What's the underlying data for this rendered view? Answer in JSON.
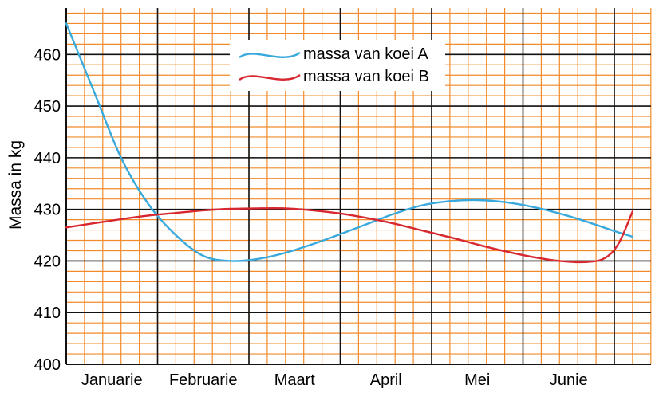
{
  "chart_data": {
    "type": "line",
    "ylabel": "Massa in kg",
    "xlabel": "",
    "title": "",
    "ylim": [
      400,
      469
    ],
    "yticks": [
      400,
      410,
      420,
      430,
      440,
      450,
      460
    ],
    "categories": [
      "Januarie",
      "Februarie",
      "Maart",
      "April",
      "Mei",
      "Junie"
    ],
    "xlim": [
      0,
      6.2
    ],
    "grid": true,
    "legend_position": "top-center",
    "series": [
      {
        "name": "massa van koei A",
        "color": "#39a9dc",
        "x": [
          0,
          0.3,
          0.6,
          0.9,
          1.2,
          1.5,
          1.8,
          2.1,
          2.4,
          2.7,
          3.0,
          3.3,
          3.6,
          3.9,
          4.2,
          4.5,
          4.8,
          5.1,
          5.4,
          5.7,
          6.0,
          6.2
        ],
        "y": [
          466,
          453,
          440,
          431,
          425,
          421,
          420,
          420.4,
          421.6,
          423.3,
          425.2,
          427.2,
          429.2,
          430.8,
          431.6,
          431.8,
          431.4,
          430.5,
          429.2,
          427.6,
          425.8,
          424.7
        ]
      },
      {
        "name": "massa van koei B",
        "color": "#d7272f",
        "x": [
          0,
          0.3,
          0.6,
          0.9,
          1.2,
          1.5,
          1.8,
          2.1,
          2.4,
          2.7,
          3.0,
          3.3,
          3.6,
          3.9,
          4.2,
          4.5,
          4.8,
          5.1,
          5.4,
          5.7,
          5.9,
          6.05,
          6.2
        ],
        "y": [
          426.5,
          427.3,
          428.1,
          428.8,
          429.3,
          429.8,
          430.1,
          430.2,
          430.2,
          429.8,
          429.2,
          428.3,
          427.2,
          425.9,
          424.6,
          423.2,
          421.9,
          420.8,
          420,
          419.8,
          420.6,
          423.5,
          429.6
        ]
      }
    ]
  }
}
